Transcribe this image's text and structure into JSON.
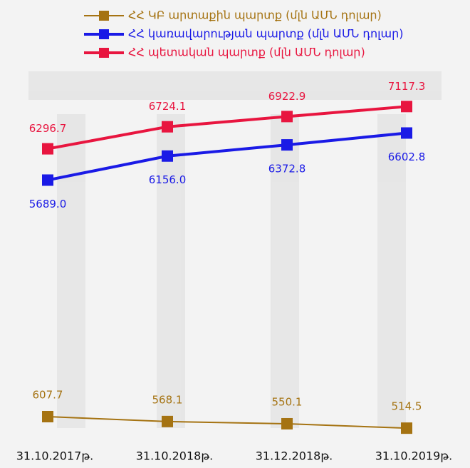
{
  "chart_data": {
    "type": "line",
    "categories": [
      "31.10.2017թ.",
      "31.10.2018թ.",
      "31.12.2018թ.",
      "31.10.2019թ."
    ],
    "ylim": [
      600,
      7800
    ],
    "y2lim": [
      400,
      3400
    ],
    "legend": "top-left",
    "series": [
      {
        "name": "ՀՀ ԿԲ արտաքին պարտք (մլն ԱՄՆ դոլար)",
        "color": "#a57312",
        "axis": "y2",
        "values": [
          607.7,
          568.1,
          550.1,
          514.5
        ],
        "value_labels": [
          "607.7",
          "568.1",
          "550.1",
          "514.5"
        ]
      },
      {
        "name": "ՀՀ կառավարության պարտք (մլն ԱՄՆ դոլար)",
        "color": "#1a1ae6",
        "values": [
          5689.0,
          6156.0,
          6372.8,
          6602.8
        ],
        "value_labels": [
          "5689.0",
          "6156.0",
          "6372.8",
          "6602.8"
        ]
      },
      {
        "name": "ՀՀ պետական պարտք (մլն ԱՄՆ դոլար)",
        "color": "#e8153f",
        "values": [
          6296.7,
          6724.1,
          6922.9,
          7117.3
        ],
        "value_labels": [
          "6296.7",
          "6724.1",
          "6922.9",
          "7117.3"
        ]
      }
    ]
  }
}
